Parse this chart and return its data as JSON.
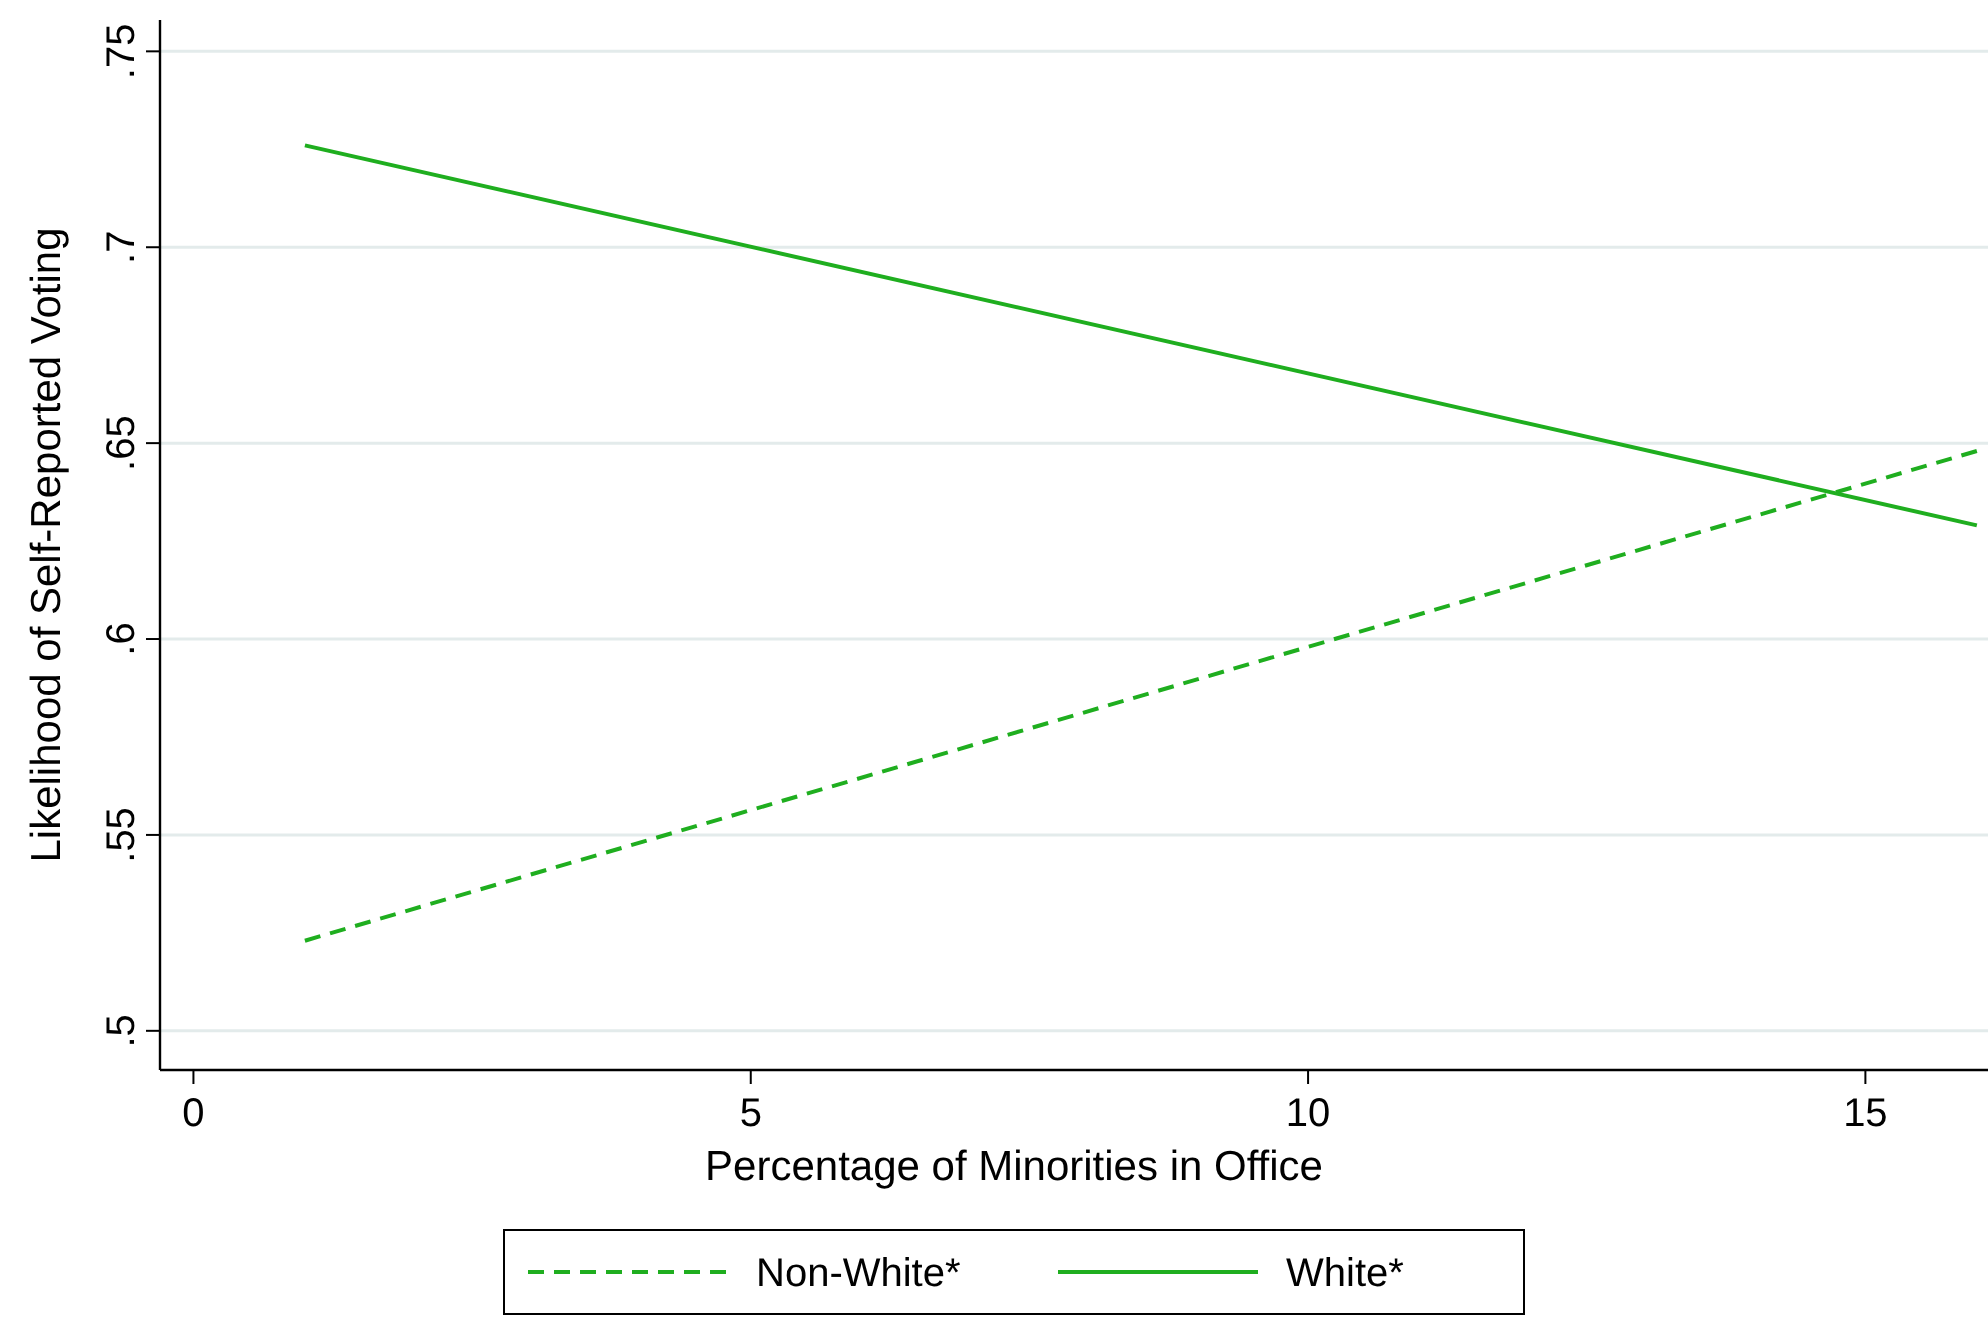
{
  "chart_data": {
    "type": "line",
    "xlabel": "Percentage of Minorities in Office",
    "ylabel": "Likelihood of Self-Reported Voting",
    "x": [
      1,
      16
    ],
    "series": [
      {
        "name": "Non-White*",
        "color": "#1fae1f",
        "values": [
          0.523,
          0.648
        ],
        "line_style": "dashed"
      },
      {
        "name": "White*",
        "color": "#1fae1f",
        "values": [
          0.726,
          0.629
        ],
        "line_style": "solid"
      }
    ],
    "xlim": [
      -0.3,
      16.1
    ],
    "xticks": [
      0,
      5,
      10,
      15
    ],
    "ylim": [
      0.49,
      0.758
    ],
    "yticks": [
      {
        "value": 0.5,
        "label": ".5"
      },
      {
        "value": 0.55,
        "label": ".55"
      },
      {
        "value": 0.6,
        "label": ".6"
      },
      {
        "value": 0.65,
        "label": ".65"
      },
      {
        "value": 0.7,
        "label": ".7"
      },
      {
        "value": 0.75,
        "label": ".75"
      }
    ],
    "grid": "y",
    "legend": "bottom",
    "marker": "none"
  }
}
